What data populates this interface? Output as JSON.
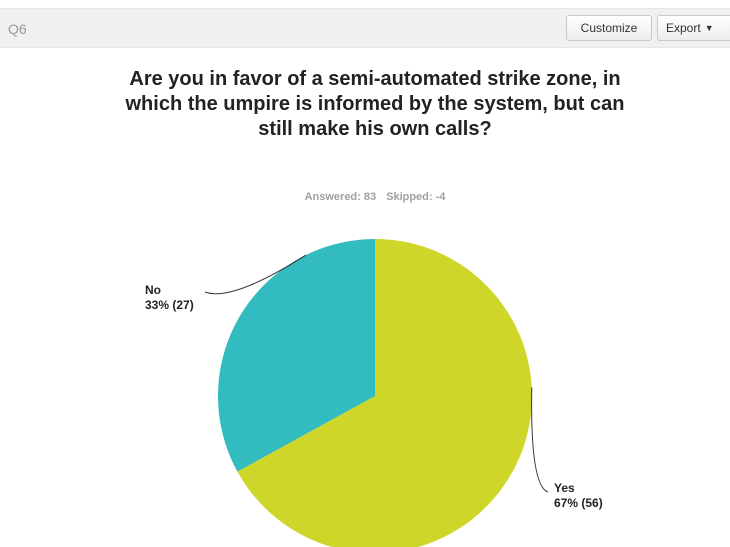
{
  "header": {
    "question_id": "Q6",
    "customize_label": "Customize",
    "export_label": "Export"
  },
  "stats": {
    "answered": "Answered: 83",
    "skipped": "Skipped: -4"
  },
  "colors": {
    "yes": "#cdd629",
    "no": "#33bcbf"
  },
  "chart_data": {
    "type": "pie",
    "title": "Are you in favor of a semi-automated strike zone, in which the umpire is informed by the system, but can still make his own calls?",
    "slices": [
      {
        "label": "Yes",
        "percent": 67,
        "count": 56,
        "value_text": "67% (56)",
        "color": "#cdd629"
      },
      {
        "label": "No",
        "percent": 33,
        "count": 27,
        "value_text": "33% (27)",
        "color": "#33bcbf"
      }
    ]
  }
}
